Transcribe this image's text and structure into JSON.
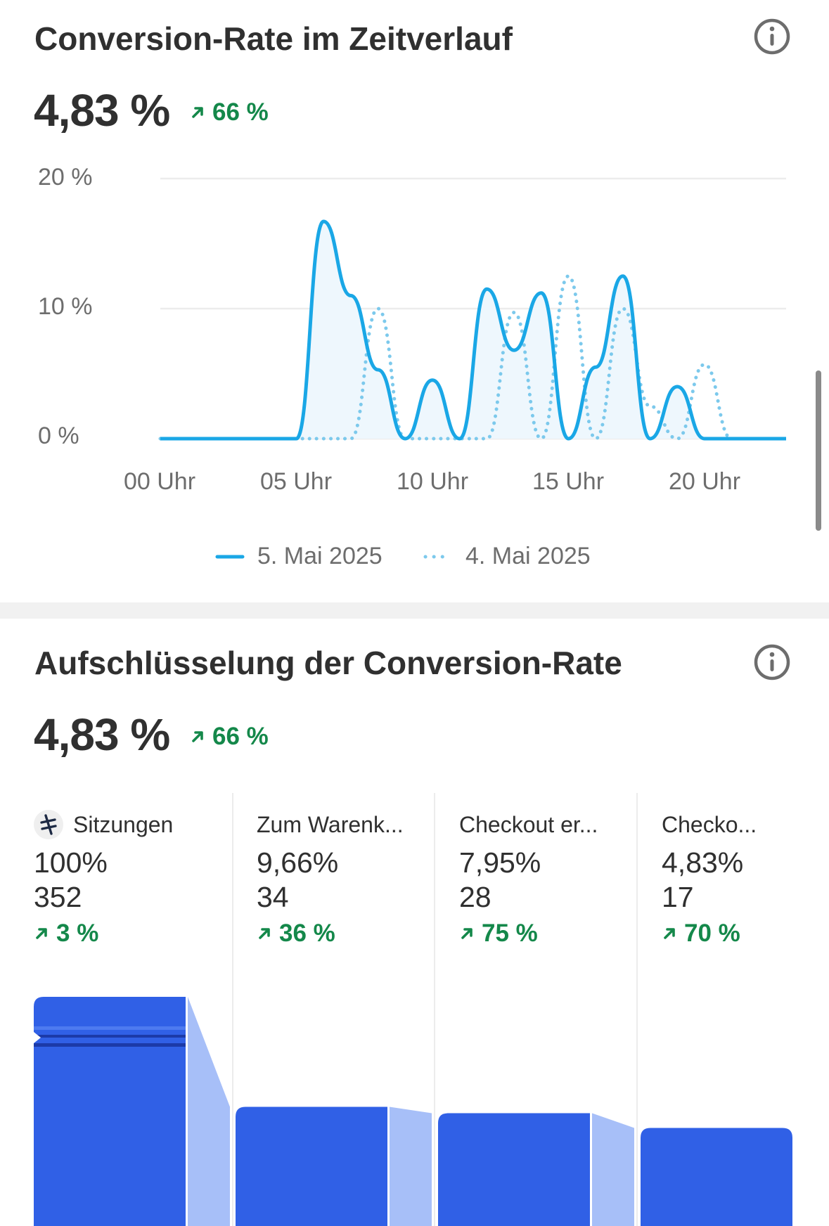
{
  "conversion_over_time": {
    "title": "Conversion-Rate im Zeitverlauf",
    "value": "4,83 %",
    "delta": "66 %",
    "legend": {
      "current": "5. Mai 2025",
      "previous": "4. Mai 2025"
    },
    "y_ticks": [
      "20 %",
      "10 %",
      "0 %"
    ],
    "x_ticks": [
      "00 Uhr",
      "05 Uhr",
      "10 Uhr",
      "15 Uhr",
      "20 Uhr"
    ]
  },
  "chart_data": {
    "type": "line",
    "title": "Conversion-Rate im Zeitverlauf",
    "xlabel": "",
    "ylabel": "",
    "x": [
      "00 Uhr",
      "01 Uhr",
      "02 Uhr",
      "03 Uhr",
      "04 Uhr",
      "05 Uhr",
      "06 Uhr",
      "07 Uhr",
      "08 Uhr",
      "09 Uhr",
      "10 Uhr",
      "11 Uhr",
      "12 Uhr",
      "13 Uhr",
      "14 Uhr",
      "15 Uhr",
      "16 Uhr",
      "17 Uhr",
      "18 Uhr",
      "19 Uhr",
      "20 Uhr",
      "21 Uhr",
      "22 Uhr",
      "23 Uhr"
    ],
    "ylim": [
      0,
      20
    ],
    "series": [
      {
        "name": "5. Mai 2025",
        "style": "solid",
        "color": "#1aa7e6",
        "values": [
          0,
          0,
          0,
          0,
          0,
          0,
          16.7,
          11,
          5.3,
          0,
          4.5,
          0,
          11.5,
          6.8,
          11.2,
          0,
          5.5,
          12.5,
          0,
          4,
          0,
          0,
          0,
          0
        ]
      },
      {
        "name": "4. Mai 2025",
        "style": "dotted",
        "color": "#7cc9ec",
        "values": [
          0,
          0,
          0,
          0,
          0,
          0,
          0,
          0,
          10,
          0,
          0,
          0,
          0,
          9.7,
          0,
          12.5,
          0,
          10,
          2.5,
          0,
          5.7,
          0,
          0,
          0
        ]
      }
    ],
    "grid": true,
    "legend_position": "bottom"
  },
  "breakdown": {
    "title": "Aufschlüsselung der Conversion-Rate",
    "value": "4,83 %",
    "delta": "66 %",
    "steps": [
      {
        "label": "Sitzungen",
        "percent": "100%",
        "count": "352",
        "delta": "3 %",
        "fill": 1.0
      },
      {
        "label": "Zum Warenk...",
        "percent": "9,66%",
        "count": "34",
        "delta": "36 %",
        "fill": 0.0966
      },
      {
        "label": "Checkout er...",
        "percent": "7,95%",
        "count": "28",
        "delta": "75 %",
        "fill": 0.0795
      },
      {
        "label": "Checko...",
        "percent": "4,83%",
        "count": "17",
        "delta": "70 %",
        "fill": 0.0483
      }
    ]
  },
  "colors": {
    "accent": "#1aa7e6",
    "positive": "#14884a",
    "bar": "#3060e6",
    "bar_light": "#a7bff8"
  }
}
